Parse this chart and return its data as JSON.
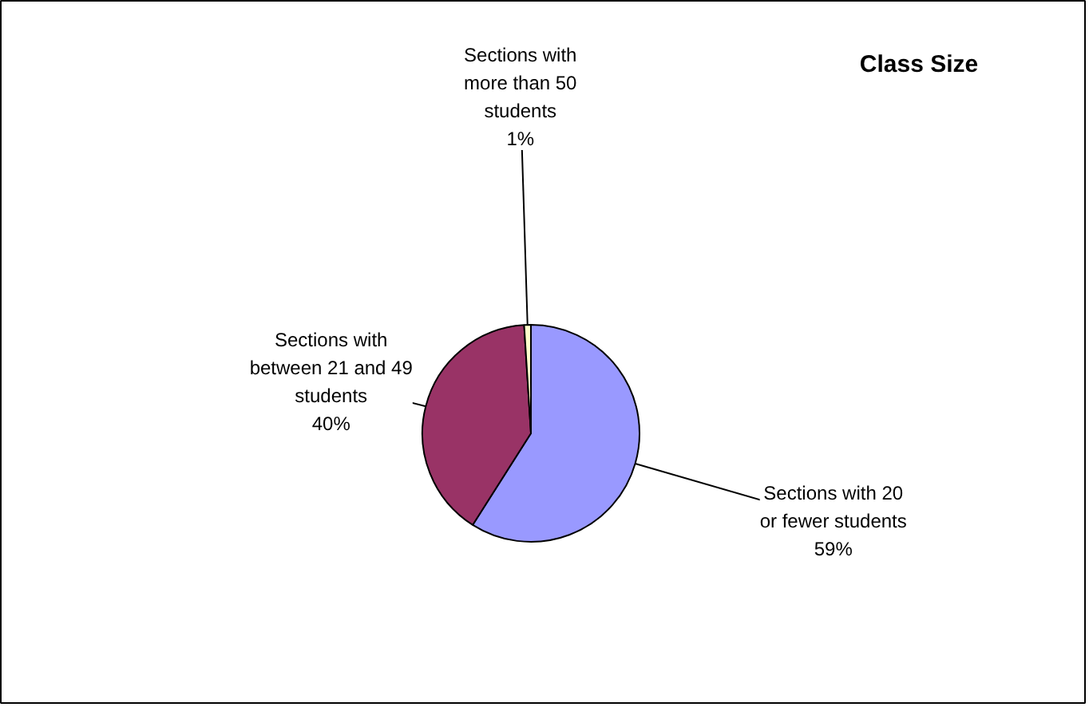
{
  "chart_data": {
    "type": "pie",
    "title": "Class Size",
    "categories": [
      "Sections with 20 or fewer students",
      "Sections with between 21 and 49 students",
      "Sections with more than 50 students"
    ],
    "values": [
      59,
      40,
      1
    ],
    "value_labels": [
      "59%",
      "40%",
      "1%"
    ],
    "colors": [
      "#9999ff",
      "#993366",
      "#ffffcc"
    ]
  }
}
